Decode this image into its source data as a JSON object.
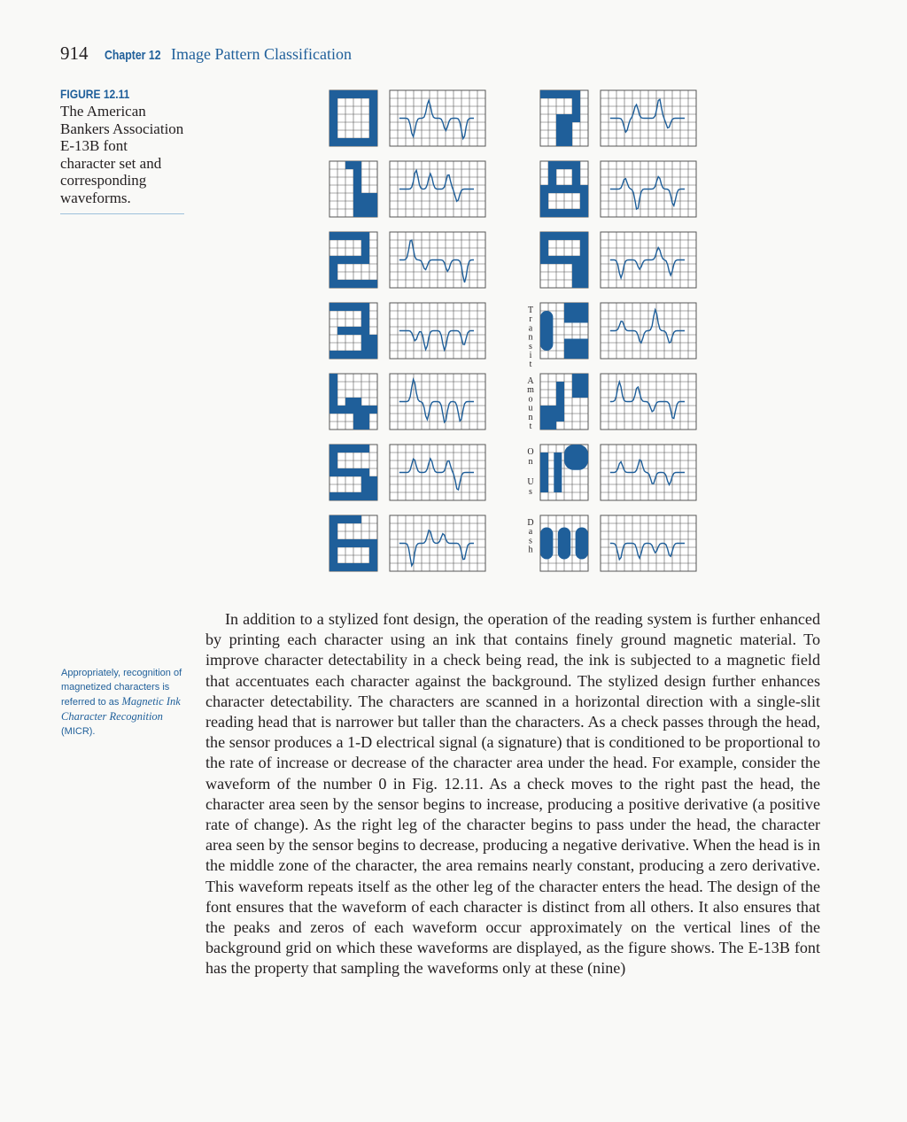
{
  "header": {
    "page_number": "914",
    "chapter_label": "Chapter 12",
    "chapter_title": "Image Pattern Classification"
  },
  "figure": {
    "label": "FIGURE 12.11",
    "caption": "The American Bankers Association E-13B font character set and corresponding waveforms.",
    "characters_left": [
      "0",
      "1",
      "2",
      "3",
      "4",
      "5",
      "6"
    ],
    "characters_right": [
      "7",
      "8",
      "9"
    ],
    "special_symbols": [
      {
        "name": "Transit",
        "letters": [
          "T",
          "r",
          "a",
          "n",
          "s",
          "i",
          "t"
        ]
      },
      {
        "name": "Amount",
        "letters": [
          "A",
          "m",
          "o",
          "u",
          "n",
          "t"
        ]
      },
      {
        "name": "On Us",
        "letters": [
          "O",
          "n",
          "U",
          "s"
        ]
      },
      {
        "name": "Dash",
        "letters": [
          "D",
          "a",
          "s",
          "h"
        ]
      }
    ],
    "ink_color": "#1f5f9a",
    "grid_color": "#555555"
  },
  "sidenote": {
    "text_before": "Appropriately, recognition of magnetized characters is referred to as ",
    "italic": "Magnetic Ink Character Recognition",
    "text_after": " (MICR)."
  },
  "body": {
    "paragraph": "In addition to a stylized font design, the operation of the reading system is further enhanced by printing each character using an ink that contains finely ground magnetic material. To improve character detectability in a check being read, the ink is subjected to a magnetic field that accentuates each character against the background. The stylized design further enhances character detectability. The characters are scanned in a horizontal direction with a single-slit reading head that is narrower but taller than the characters. As a check passes through the head, the sensor produces a 1-D electrical signal (a signature) that is conditioned to be proportional to the rate of increase or decrease of the character area under the head. For example, consider the waveform of the number 0 in Fig. 12.11. As a check moves to the right past the head, the character area seen by the sensor begins to increase, producing a positive derivative (a positive rate of change). As the right leg of the character begins to pass under the head, the character area seen by the sensor begins to decrease, producing a negative derivative. When the head is in the middle zone of the character, the area remains nearly constant, producing a zero derivative. This waveform repeats itself as the other leg of the character enters the head. The design of the font ensures that the waveform of each character is distinct from all others. It also ensures that the peaks and zeros of each waveform occur approximately on the vertical lines of the background grid on which these waveforms are displayed, as the figure shows. The E-13B font has the property that sampling the waveforms only at these (nine)"
  }
}
